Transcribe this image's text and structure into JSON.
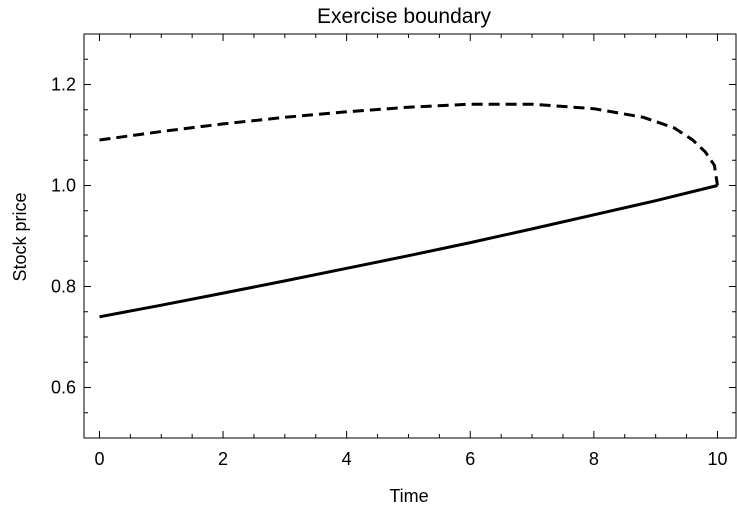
{
  "chart_data": {
    "type": "line",
    "title": "Exercise boundary",
    "xlabel": "Time",
    "ylabel": "Stock price",
    "xlim": [
      -0.25,
      10.3
    ],
    "ylim": [
      0.5,
      1.3
    ],
    "x_ticks": [
      0,
      2,
      4,
      6,
      8,
      10
    ],
    "x_tick_labels": [
      "0",
      "2",
      "4",
      "6",
      "8",
      "10"
    ],
    "y_ticks": [
      0.6,
      0.8,
      1.0,
      1.2
    ],
    "y_tick_labels": [
      "0.6",
      "0.8",
      "1.0",
      "1.2"
    ],
    "grid": false,
    "legend": "none",
    "series": [
      {
        "style": "dashed",
        "color": "#000000",
        "x": [
          0,
          1,
          2,
          3,
          4,
          5,
          6,
          7,
          8,
          8.8,
          9.3,
          9.6,
          9.8,
          9.95,
          10.0
        ],
        "y": [
          1.09,
          1.107,
          1.122,
          1.135,
          1.146,
          1.155,
          1.161,
          1.161,
          1.152,
          1.135,
          1.114,
          1.09,
          1.067,
          1.04,
          1.0
        ]
      },
      {
        "style": "solid",
        "color": "#000000",
        "x": [
          0,
          1,
          2,
          3,
          4,
          5,
          6,
          7,
          8,
          9,
          10
        ],
        "y": [
          0.74,
          0.763,
          0.787,
          0.811,
          0.836,
          0.861,
          0.887,
          0.914,
          0.942,
          0.97,
          1.0
        ]
      }
    ]
  }
}
